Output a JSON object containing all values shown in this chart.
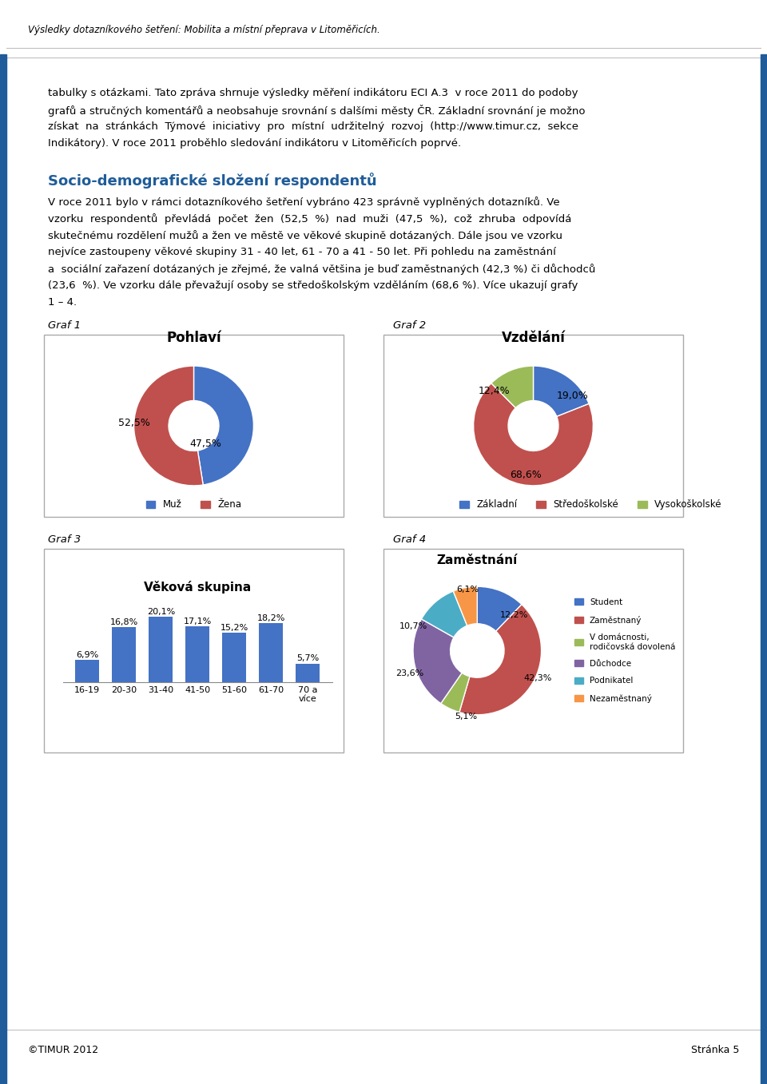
{
  "header_text": "Výsledky dotazníkového šetření: Mobilita a místní přeprava v Litoměřicích.",
  "footer_left": "©TIMUR 2012",
  "footer_right": "Stránka 5",
  "body_text_lines": [
    "tabulky s otázkami. Tato zpráva shrnuje výsledky měření indikátoru ECI A.3  v roce 2011 do podoby",
    "grafů a stručných komentářů a neobsahuje srovnání s dalšími městy ČR. Základní srovnání je možno",
    "získat  na  stránkách  Týmové  iniciativy  pro  místní  udržitelný  rozvoj  (http://www.timur.cz,  sekce",
    "Indikátory). V roce 2011 proběhlo sledování indikátoru v Litoměřicích poprvé."
  ],
  "section_title": "Socio-demografické složení respondentů",
  "section_body_lines": [
    "V roce 2011 bylo v rámci dotazníkového šetření vybráno 423 správně vyplněných dotazníků. Ve",
    "vzorku  respondentů  převládá  počet  žen  (52,5  %)  nad  muži  (47,5  %),  což  zhruba  odpovídá",
    "skutečnému rozdělení mužů a žen ve městě ve věkové skupině dotázaných. Dále jsou ve vzorku",
    "nejvíce zastoupeny věkové skupiny 31 - 40 let, 61 - 70 a 41 - 50 let. Při pohledu na zaměstnání",
    "a  sociální zařazení dotázaných je zřejmé, že valná většina je buď zaměstnaných (42,3 %) či důchodců",
    "(23,6  %). Ve vzorku dále převažují osoby se středoškolským vzděláním (68,6 %). Více ukazují grafy",
    "1 – 4."
  ],
  "graf1_label": "Graf 1",
  "graf2_label": "Graf 2",
  "graf3_label": "Graf 3",
  "graf4_label": "Graf 4",
  "pohlavì_title": "Pohlaví",
  "pohlavì_values": [
    47.5,
    52.5
  ],
  "pohlavì_labels": [
    "47,5%",
    "52,5%"
  ],
  "pohlavì_colors": [
    "#4472C4",
    "#C0504D"
  ],
  "pohlavì_legend": [
    "Muž",
    "Žena"
  ],
  "vzdelanì_title": "Vzdělání",
  "vzdelanì_values": [
    19.0,
    68.6,
    12.4
  ],
  "vzdelanì_labels": [
    "19,0%",
    "68,6%",
    "12,4%"
  ],
  "vzdelanì_colors": [
    "#4472C4",
    "#C0504D",
    "#9BBB59"
  ],
  "vzdelanì_legend": [
    "Základní",
    "Středoškolské",
    "Vysokoškolské"
  ],
  "vek_title": "Věková skupina",
  "vek_categories": [
    "16-19",
    "20-30",
    "31-40",
    "41-50",
    "51-60",
    "61-70",
    "70 a\nvíce"
  ],
  "vek_values": [
    6.9,
    16.8,
    20.1,
    17.1,
    15.2,
    18.2,
    5.7
  ],
  "vek_labels": [
    "6,9%",
    "16,8%",
    "20,1%",
    "17,1%",
    "15,2%",
    "18,2%",
    "5,7%"
  ],
  "vek_color": "#4472C4",
  "zam_title": "Zaměstnání",
  "zam_values": [
    12.2,
    42.3,
    5.1,
    23.6,
    10.7,
    6.1
  ],
  "zam_labels": [
    "12,2%",
    "42,3%",
    "5,1%",
    "23,6%",
    "10,7%",
    "6,1%"
  ],
  "zam_colors": [
    "#4472C4",
    "#C0504D",
    "#9BBB59",
    "#8064A2",
    "#4BACC6",
    "#F79646"
  ],
  "zam_legend": [
    "Student",
    "Zaměstnaný",
    "V domácnosti,\nrodičovská dovolená",
    "Důchodce",
    "Podnikatel",
    "Nezaměstnaný"
  ],
  "bg_color": "#FFFFFF",
  "blue_bar_color": "#1F5C99",
  "header_line_color": "#C0C0C0",
  "section_title_color": "#1F5C99"
}
